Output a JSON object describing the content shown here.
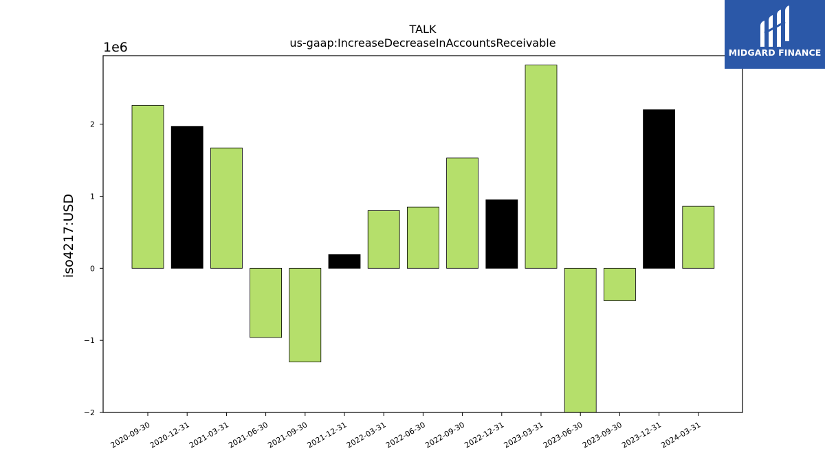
{
  "logo": {
    "text": "MIDGARD FINANCE",
    "icon": "midgard-logo-icon",
    "background": "#2b58a8"
  },
  "chart_data": {
    "type": "bar",
    "title": "TALK",
    "subtitle": "us-gaap:IncreaseDecreaseInAccountsReceivable",
    "ylabel": "iso4217:USD",
    "xlabel": "",
    "offset_label": "1e6",
    "ylim": [
      -2000000,
      2950000
    ],
    "yticks": [
      -2000000,
      -1000000,
      0,
      1000000,
      2000000
    ],
    "ytick_labels": [
      "−2",
      "−1",
      "0",
      "1",
      "2"
    ],
    "categories": [
      "2020-09-30",
      "2020-12-31",
      "2021-03-31",
      "2021-06-30",
      "2021-09-30",
      "2021-12-31",
      "2022-03-31",
      "2022-06-30",
      "2022-09-30",
      "2022-12-31",
      "2023-03-31",
      "2023-06-30",
      "2023-09-30",
      "2023-12-31",
      "2024-03-31"
    ],
    "values": [
      2260000,
      1970000,
      1670000,
      -960000,
      -1300000,
      190000,
      800000,
      850000,
      1530000,
      950000,
      2820000,
      -2000000,
      -450000,
      2200000,
      860000
    ],
    "bar_colors": [
      "#b5df6b",
      "#000000",
      "#b5df6b",
      "#b5df6b",
      "#b5df6b",
      "#000000",
      "#b5df6b",
      "#b5df6b",
      "#b5df6b",
      "#000000",
      "#b5df6b",
      "#b5df6b",
      "#b5df6b",
      "#000000",
      "#b5df6b"
    ],
    "grid": false,
    "legend": "none"
  }
}
